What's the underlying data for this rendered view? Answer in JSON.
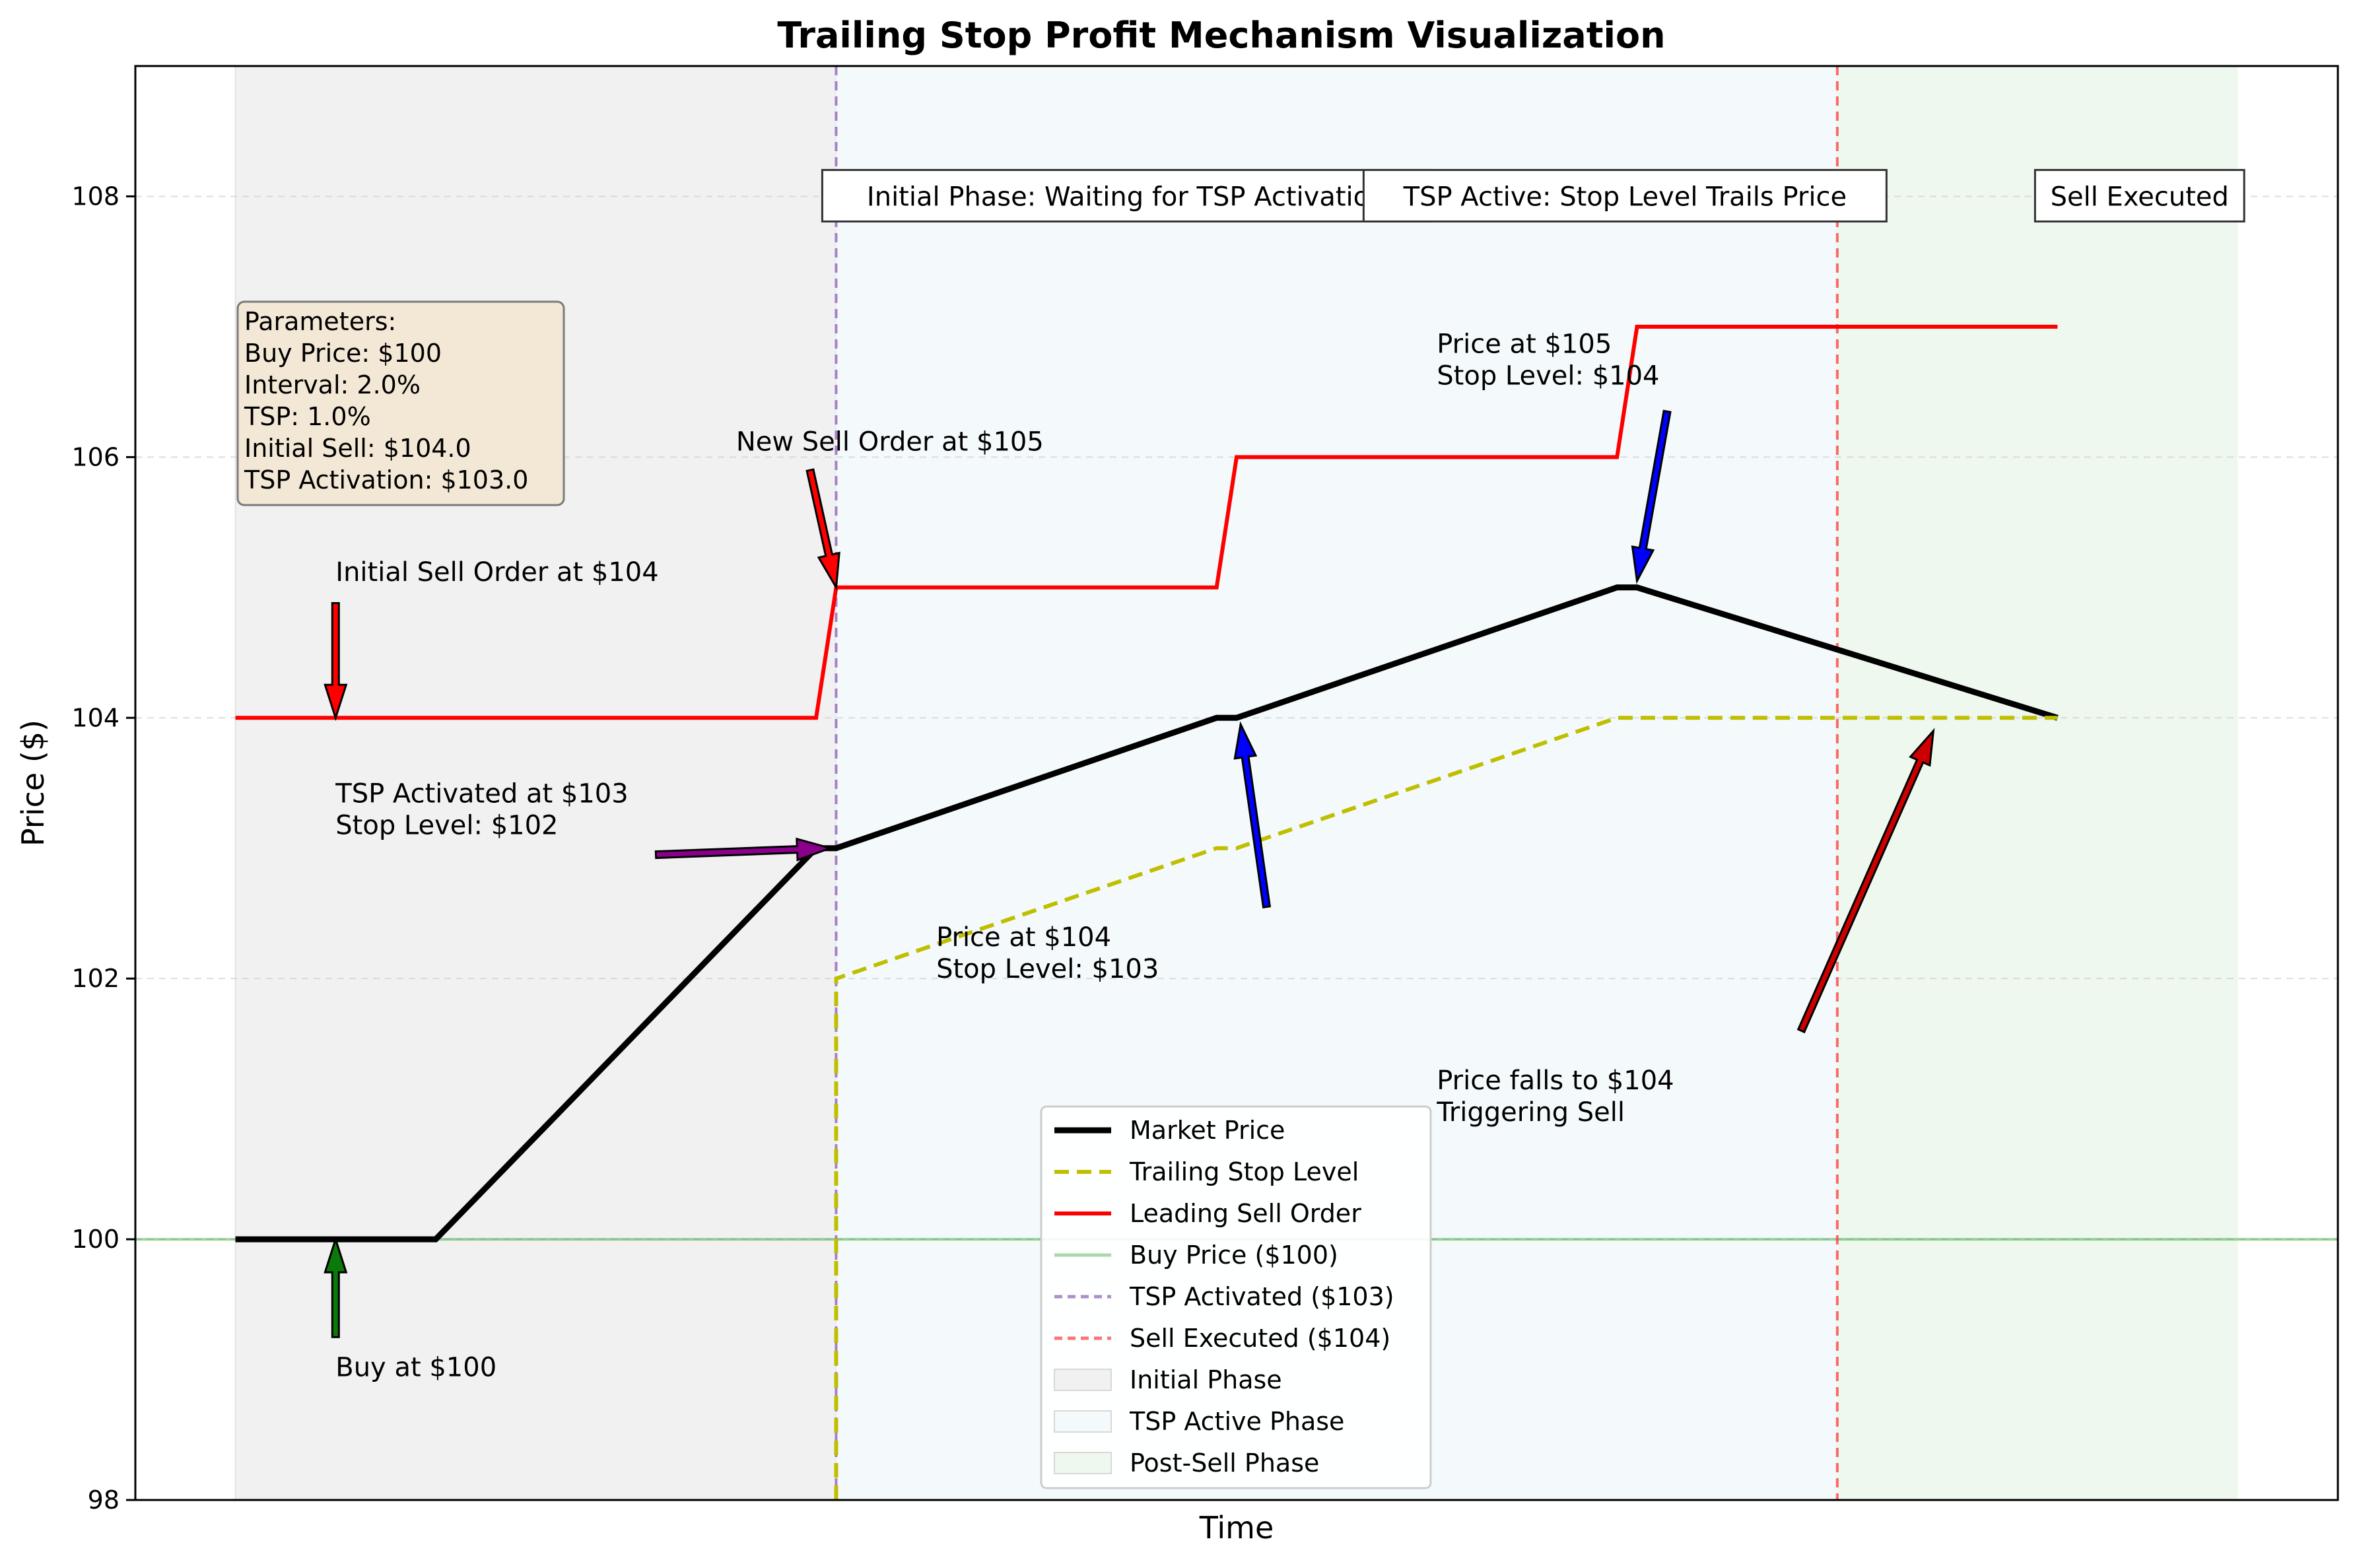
{
  "chart_data": {
    "type": "line",
    "title": "Trailing Stop Profit Mechanism Visualization",
    "xlabel": "Time",
    "ylabel": "Price ($)",
    "xlim": [
      -5,
      105
    ],
    "ylim": [
      98,
      109
    ],
    "yticks": [
      98,
      100,
      102,
      104,
      106,
      108
    ],
    "grid": "horizontal dashed",
    "legend_position": "lower-center",
    "series": [
      {
        "name": "Market Price",
        "color": "#000000",
        "style": "solid-thick",
        "x": [
          0,
          5,
          10,
          29,
          30,
          49,
          49.5,
          50,
          69,
          70,
          91
        ],
        "y": [
          100,
          100,
          100,
          103,
          103,
          104,
          104,
          104,
          105,
          105,
          104
        ]
      },
      {
        "name": "Trailing Stop Level",
        "color": "#bfbf00",
        "style": "dashed",
        "x": [
          30,
          30,
          49,
          50,
          69,
          70,
          90,
          91
        ],
        "y": [
          98,
          102,
          103,
          103,
          104,
          104,
          104,
          104
        ]
      },
      {
        "name": "Leading Sell Order",
        "color": "#ff0000",
        "style": "solid",
        "x": [
          0,
          29,
          30,
          49,
          50,
          69,
          70,
          90,
          91
        ],
        "y": [
          104,
          104,
          105,
          105,
          106,
          106,
          107,
          107,
          107
        ]
      }
    ],
    "reference_lines": [
      {
        "name": "Buy Price ($100)",
        "orientation": "horizontal",
        "value": 100,
        "color": "#2ca02c",
        "style": "solid-faint"
      },
      {
        "name": "TSP Activated ($103)",
        "orientation": "vertical",
        "value": 30,
        "color": "#9467bd",
        "style": "dashed"
      },
      {
        "name": "Sell Executed ($104)",
        "orientation": "vertical",
        "value": 80,
        "color": "#ff4444",
        "style": "dashed"
      }
    ],
    "phases": [
      {
        "name": "Initial Phase",
        "x": [
          0,
          30
        ],
        "color": "#d9d9d9",
        "label": "Initial Phase: Waiting for TSP Activation"
      },
      {
        "name": "TSP Active Phase",
        "x": [
          30,
          80
        ],
        "color": "#e8f4fb",
        "label": "TSP Active: Stop Level Trails Price"
      },
      {
        "name": "Post-Sell Phase",
        "x": [
          80,
          100
        ],
        "color": "#dff5df",
        "label": "Sell Executed"
      }
    ],
    "parameters_box": {
      "lines": [
        "Parameters:",
        "Buy Price: $100",
        "Interval: 2.0%",
        "TSP: 1.0%",
        "Initial Sell: $104.0",
        "TSP Activation: $103.0"
      ]
    },
    "annotations": [
      {
        "lines": [
          "Buy at $100"
        ],
        "color": "#0a7a0a",
        "tip": [
          5,
          100
        ],
        "tail": [
          5,
          99.25
        ],
        "text_at": [
          5,
          98.95
        ]
      },
      {
        "lines": [
          "Initial Sell Order at $104"
        ],
        "color": "#ff0000",
        "tip": [
          5,
          104
        ],
        "tail": [
          5,
          104.88
        ],
        "text_at": [
          5,
          105.05
        ]
      },
      {
        "lines": [
          "TSP Activated at $103",
          "Stop Level: $102"
        ],
        "color": "#8b008b",
        "tip": [
          29.7,
          103
        ],
        "tail": [
          21,
          102.95
        ],
        "text_at": [
          5,
          103.35
        ]
      },
      {
        "lines": [
          "New Sell Order at $105"
        ],
        "color": "#ff0000",
        "tip": [
          30,
          105
        ],
        "tail": [
          28.7,
          105.9
        ],
        "text_at": [
          25,
          106.05
        ]
      },
      {
        "lines": [
          "Price at $104",
          "Stop Level: $103"
        ],
        "color": "#0000ff",
        "tip": [
          50.2,
          103.95
        ],
        "tail": [
          51.5,
          102.55
        ],
        "text_at": [
          35,
          102.25
        ]
      },
      {
        "lines": [
          "Price at $105",
          "Stop Level: $104"
        ],
        "color": "#0000ff",
        "tip": [
          70,
          105.05
        ],
        "tail": [
          71.5,
          106.35
        ],
        "text_at": [
          60,
          106.8
        ]
      },
      {
        "lines": [
          "Price falls to $104",
          "Triggering Sell"
        ],
        "color": "#cc0000",
        "tip": [
          84.8,
          103.9
        ],
        "tail": [
          78.2,
          101.6
        ],
        "text_at": [
          60,
          101.15
        ]
      }
    ]
  }
}
